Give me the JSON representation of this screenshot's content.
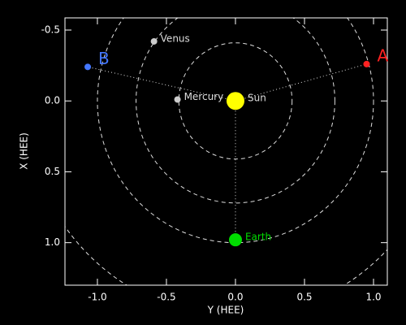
{
  "chart_data": {
    "type": "scatter",
    "xlabel": "Y (HEE)",
    "ylabel": "X (HEE)",
    "xlim": [
      -1.235,
      1.1
    ],
    "ylim": [
      1.3,
      -0.586
    ],
    "xticks": [
      {
        "value": -1,
        "label": "-1.0"
      },
      -0.5,
      {
        "value": 0,
        "label": "0.0"
      },
      0.5,
      {
        "value": 1,
        "label": "1.0"
      }
    ],
    "yticks": [
      -0.5,
      {
        "value": 0,
        "label": "0.0"
      },
      0.5,
      {
        "value": 1,
        "label": "1.0"
      }
    ],
    "orbits": [
      0.41,
      0.72,
      1.0,
      1.52
    ],
    "points": [
      {
        "name": "Sun",
        "x": 0,
        "y": 0,
        "color": "#ffff00",
        "label_color": "#dddddd",
        "size": 11
      },
      {
        "name": "Earth",
        "x": 0,
        "y": 0.98,
        "color": "#00dd00",
        "label_color": "#00dd00",
        "size": 8
      },
      {
        "name": "Mercury",
        "x": -0.42,
        "y": -0.01,
        "color": "#cccccc",
        "label_color": "#dddddd",
        "size": 4
      },
      {
        "name": "Venus",
        "x": -0.59,
        "y": -0.42,
        "color": "#cccccc",
        "label_color": "#dddddd",
        "size": 4
      },
      {
        "name": "B",
        "x": -1.07,
        "y": -0.24,
        "color": "#4477ff",
        "label_color": "#4477ff",
        "size": 4
      },
      {
        "name": "A",
        "x": 0.95,
        "y": -0.26,
        "color": "#ff2222",
        "label_color": "#ff2222",
        "size": 4
      }
    ]
  }
}
